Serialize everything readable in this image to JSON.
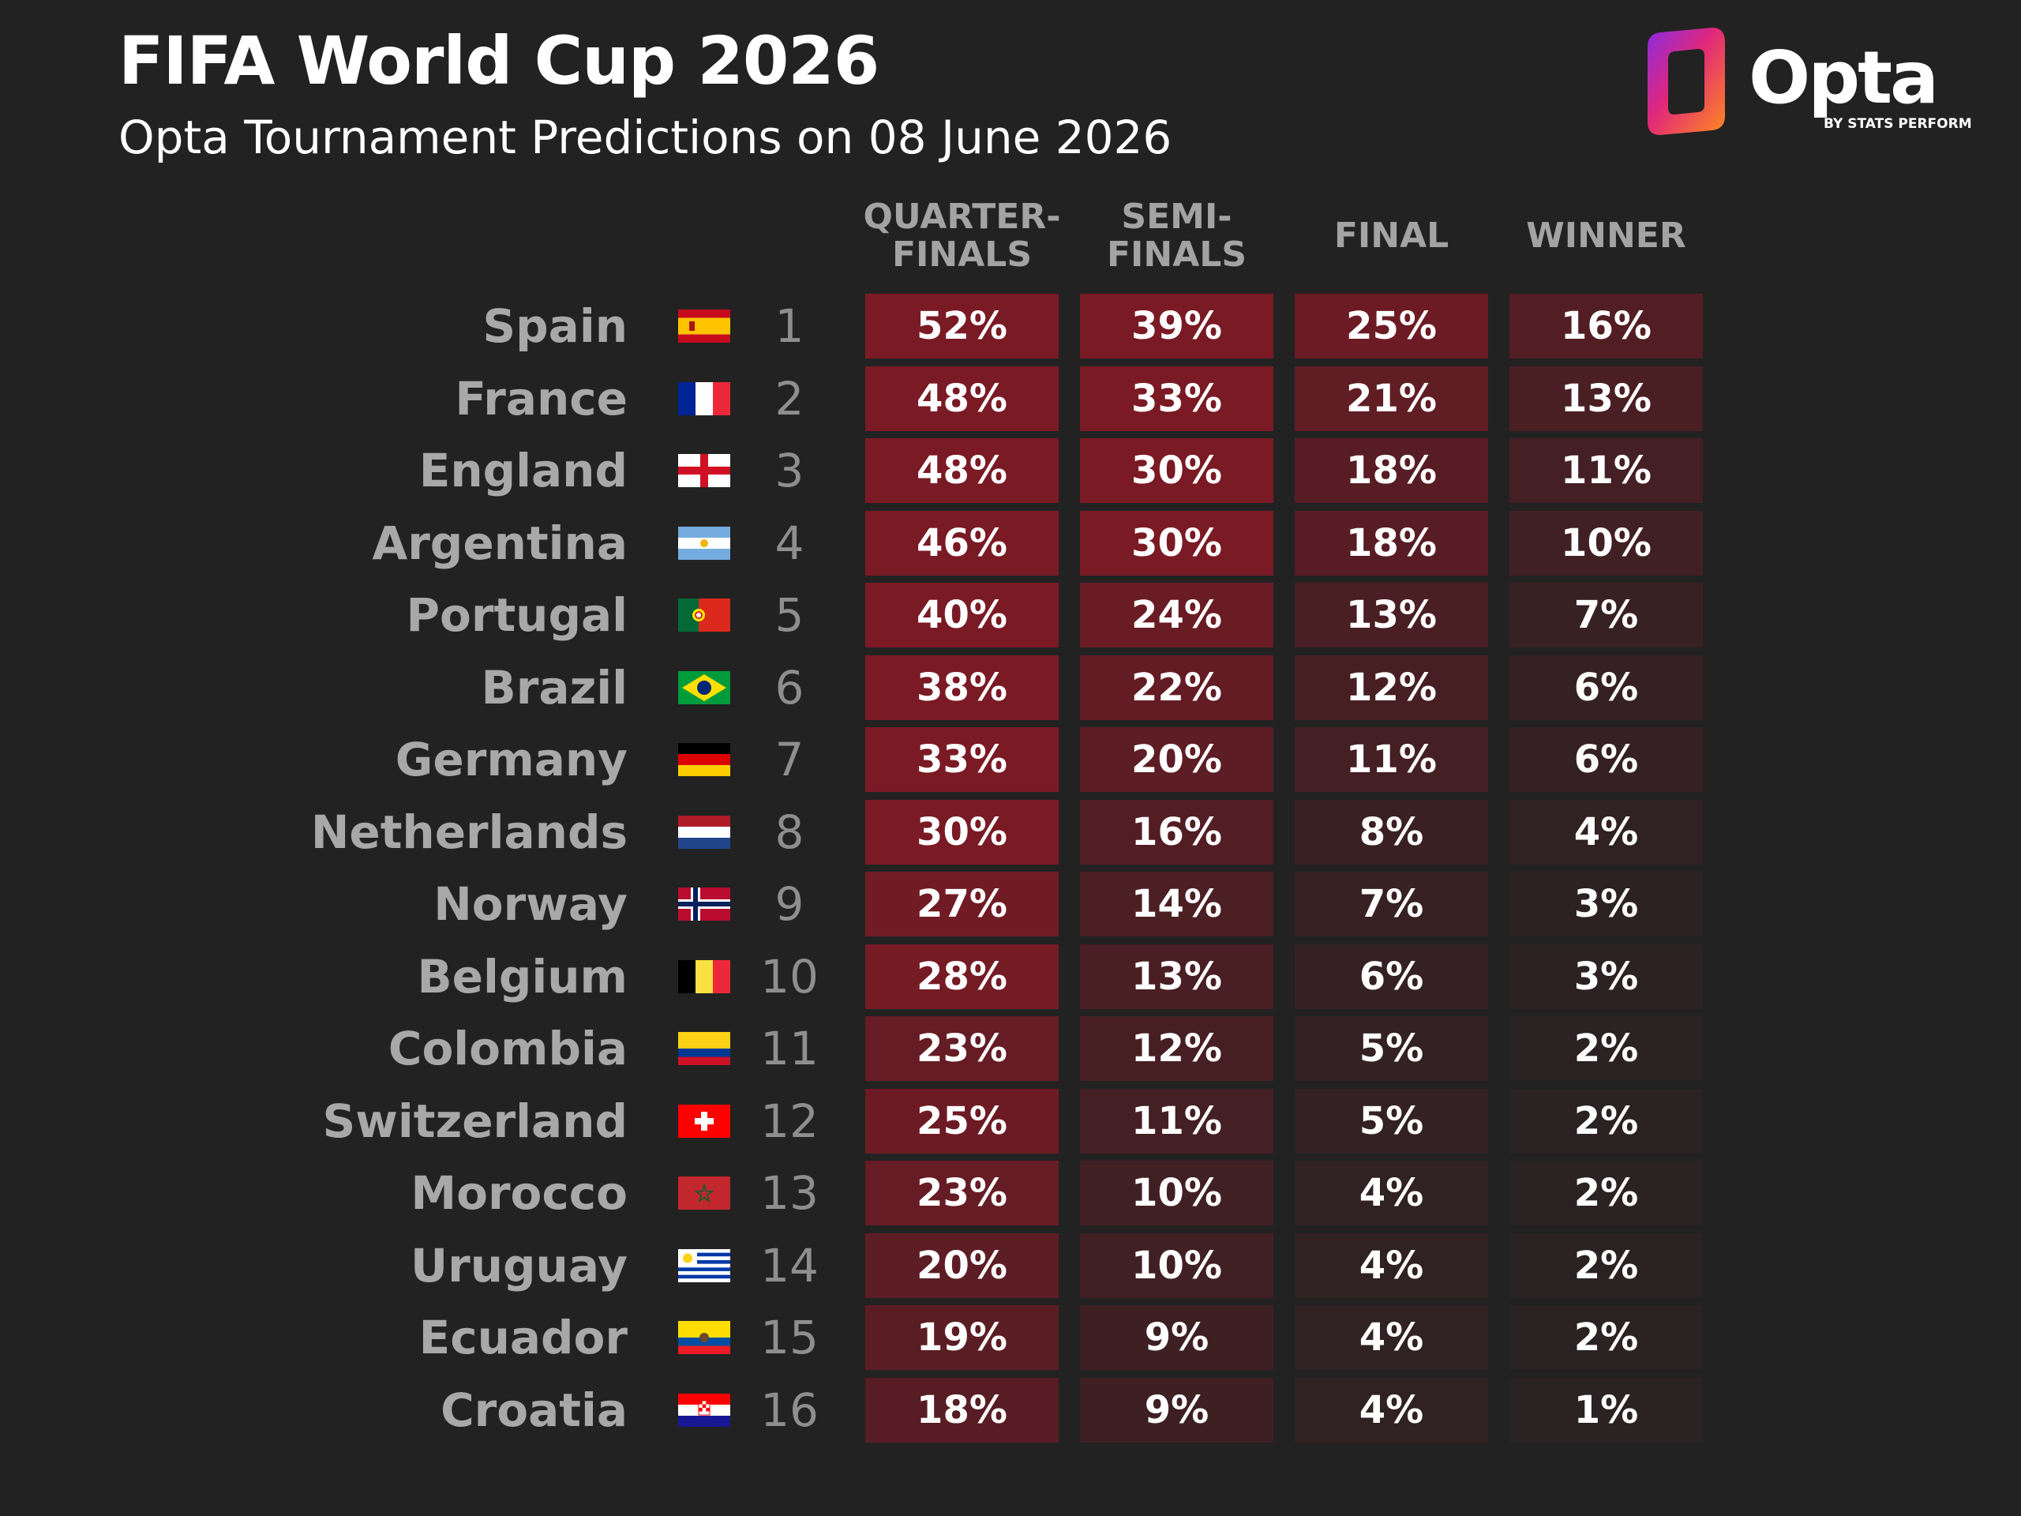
{
  "title": "FIFA World Cup 2026",
  "subtitle": "Opta Tournament Predictions on 08 June 2026",
  "logo": {
    "word": "Opta",
    "byline": "BY STATS PERFORM"
  },
  "colors": {
    "background": "#222222",
    "heat_high": "#7a1a24",
    "heat_low": "#2a2223"
  },
  "chart_data": {
    "type": "table",
    "columns": [
      "QUARTER-\nFINALS",
      "SEMI-\nFINALS",
      "FINAL",
      "WINNER"
    ],
    "rows": [
      {
        "country": "Spain",
        "flag": "spain-flag",
        "rank": "1",
        "values": [
          "52%",
          "39%",
          "25%",
          "16%"
        ]
      },
      {
        "country": "France",
        "flag": "france-flag",
        "rank": "2",
        "values": [
          "48%",
          "33%",
          "21%",
          "13%"
        ]
      },
      {
        "country": "England",
        "flag": "england-flag",
        "rank": "3",
        "values": [
          "48%",
          "30%",
          "18%",
          "11%"
        ]
      },
      {
        "country": "Argentina",
        "flag": "argentina-flag",
        "rank": "4",
        "values": [
          "46%",
          "30%",
          "18%",
          "10%"
        ]
      },
      {
        "country": "Portugal",
        "flag": "portugal-flag",
        "rank": "5",
        "values": [
          "40%",
          "24%",
          "13%",
          "7%"
        ]
      },
      {
        "country": "Brazil",
        "flag": "brazil-flag",
        "rank": "6",
        "values": [
          "38%",
          "22%",
          "12%",
          "6%"
        ]
      },
      {
        "country": "Germany",
        "flag": "germany-flag",
        "rank": "7",
        "values": [
          "33%",
          "20%",
          "11%",
          "6%"
        ]
      },
      {
        "country": "Netherlands",
        "flag": "netherlands-flag",
        "rank": "8",
        "values": [
          "30%",
          "16%",
          "8%",
          "4%"
        ]
      },
      {
        "country": "Norway",
        "flag": "norway-flag",
        "rank": "9",
        "values": [
          "27%",
          "14%",
          "7%",
          "3%"
        ]
      },
      {
        "country": "Belgium",
        "flag": "belgium-flag",
        "rank": "10",
        "values": [
          "28%",
          "13%",
          "6%",
          "3%"
        ]
      },
      {
        "country": "Colombia",
        "flag": "colombia-flag",
        "rank": "11",
        "values": [
          "23%",
          "12%",
          "5%",
          "2%"
        ]
      },
      {
        "country": "Switzerland",
        "flag": "switzerland-flag",
        "rank": "12",
        "values": [
          "25%",
          "11%",
          "5%",
          "2%"
        ]
      },
      {
        "country": "Morocco",
        "flag": "morocco-flag",
        "rank": "13",
        "values": [
          "23%",
          "10%",
          "4%",
          "2%"
        ]
      },
      {
        "country": "Uruguay",
        "flag": "uruguay-flag",
        "rank": "14",
        "values": [
          "20%",
          "10%",
          "4%",
          "2%"
        ]
      },
      {
        "country": "Ecuador",
        "flag": "ecuador-flag",
        "rank": "15",
        "values": [
          "19%",
          "9%",
          "4%",
          "2%"
        ]
      },
      {
        "country": "Croatia",
        "flag": "croatia-flag",
        "rank": "16",
        "values": [
          "18%",
          "9%",
          "4%",
          "1%"
        ]
      }
    ]
  }
}
